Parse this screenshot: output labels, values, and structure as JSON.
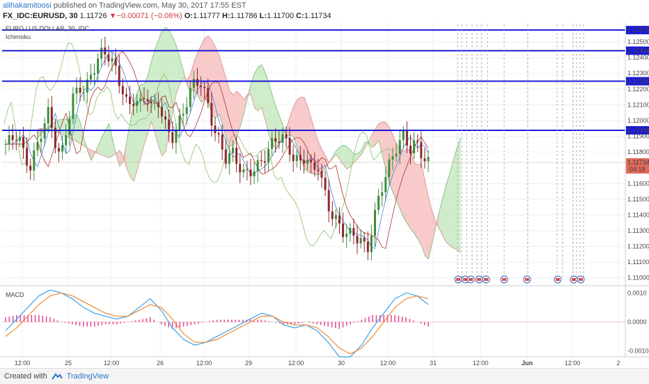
{
  "header": {
    "user": "alihakamitoosi",
    "published_text": " published on TradingView.com, May 30, 2017 17:55 EST",
    "symbol": "FX_IDC:EURUSD, 30",
    "last": "1.11726",
    "change": "−0.00071 (−0.06%)",
    "o_label": "O:",
    "o_value": "1.11777",
    "h_label": "H:",
    "h_value": "1.11786",
    "l_label": "L:",
    "l_value": "1.11700",
    "c_label": "C:",
    "c_value": "1.11734"
  },
  "legend": {
    "pair_title": "EURO / US DOLLAR, 30, IDC",
    "indicator": "Ichimoku",
    "macd": "MACD"
  },
  "price_badge": {
    "value": "1.11734",
    "countdown": "04:18"
  },
  "footer": {
    "created_with": "Created with",
    "brand": "TradingView"
  },
  "colors": {
    "bull": "#3c8c3c",
    "bear": "#8a2a2a",
    "level_line": "#1a1ad8",
    "macd_line": "#3aa0e8",
    "signal_line": "#f08a30",
    "hist": "#e0509a",
    "cloud_bull": "#bfe6b8",
    "cloud_bear": "#f5b8b8"
  },
  "chart_data": [
    {
      "type": "candlestick",
      "title": "EURO / US DOLLAR, 30, IDC",
      "indicator": "Ichimoku",
      "ylim": [
        1.1095,
        1.1262
      ],
      "y_ticks": [
        "1.12575",
        "1.12500",
        "1.12444",
        "1.12400",
        "1.12300",
        "1.12250",
        "1.12200",
        "1.12100",
        "1.12000",
        "1.11938",
        "1.11900",
        "1.11800",
        "1.11734",
        "1.11600",
        "1.11500",
        "1.11400",
        "1.11300",
        "1.11200",
        "1.11100",
        "1.11000"
      ],
      "horizontal_levels": [
        1.12575,
        1.12444,
        1.1225,
        1.11938
      ],
      "x_ticks": [
        "12:00",
        "25",
        "12:00",
        "26",
        "12:00",
        "29",
        "12:00",
        "30",
        "12:00",
        "31",
        "12:00",
        "Jun",
        "12:00",
        "2"
      ],
      "candles_approx_close": [
        1.1185,
        1.1188,
        1.1192,
        1.1178,
        1.117,
        1.1182,
        1.1195,
        1.1205,
        1.1188,
        1.1175,
        1.1196,
        1.1214,
        1.1222,
        1.1218,
        1.123,
        1.1238,
        1.1245,
        1.124,
        1.1232,
        1.122,
        1.1208,
        1.1214,
        1.121,
        1.1218,
        1.1206,
        1.1212,
        1.1198,
        1.1188,
        1.1195,
        1.1205,
        1.1218,
        1.1225,
        1.1224,
        1.121,
        1.1195,
        1.1185,
        1.1176,
        1.118,
        1.1172,
        1.1165,
        1.1168,
        1.117,
        1.1175,
        1.1182,
        1.1188,
        1.119,
        1.1185,
        1.1176,
        1.1173,
        1.1178,
        1.1168,
        1.1172,
        1.1155,
        1.1142,
        1.1136,
        1.113,
        1.1128,
        1.1127,
        1.1124,
        1.1116,
        1.1135,
        1.1152,
        1.1165,
        1.1175,
        1.1185,
        1.119,
        1.1182,
        1.1186,
        1.1178,
        1.1173
      ]
    },
    {
      "type": "line",
      "title": "MACD",
      "ylim": [
        -0.0012,
        0.0012
      ],
      "y_ticks": [
        "0.0010",
        "0.0000",
        "-0.0010"
      ],
      "series": [
        {
          "values": [
            -0.0003,
            0.0001,
            0.0005,
            0.0009,
            0.0011,
            0.001,
            0.0008,
            0.0005,
            0.0003,
            0.0002,
            0.0001,
            0.0002,
            0.0005,
            0.0008,
            0.0004,
            -0.0002,
            -0.0006,
            -0.0008,
            -0.0007,
            -0.0005,
            -0.0003,
            -0.0001,
            0.0001,
            0.0003,
            0.0002,
            -0.0001,
            -0.0002,
            -0.0001,
            -0.0003,
            -0.0007,
            -0.0012,
            -0.0012,
            -0.0008,
            -0.0002,
            0.0003,
            0.0008,
            0.001,
            0.0009,
            0.0006
          ]
        },
        {
          "values": [
            -0.0005,
            -0.0002,
            0.0002,
            0.0006,
            0.0009,
            0.001,
            0.0009,
            0.0007,
            0.0005,
            0.0003,
            0.0002,
            0.0002,
            0.0004,
            0.0006,
            0.0005,
            0.0001,
            -0.0004,
            -0.0007,
            -0.0007,
            -0.0006,
            -0.0004,
            -0.0002,
            0,
            0.0002,
            0.0002,
            0,
            -0.0001,
            -0.0001,
            -0.0002,
            -0.0005,
            -0.0009,
            -0.0011,
            -0.0009,
            -0.0005,
            0,
            0.0005,
            0.0008,
            0.0009,
            0.0008
          ]
        }
      ]
    }
  ]
}
